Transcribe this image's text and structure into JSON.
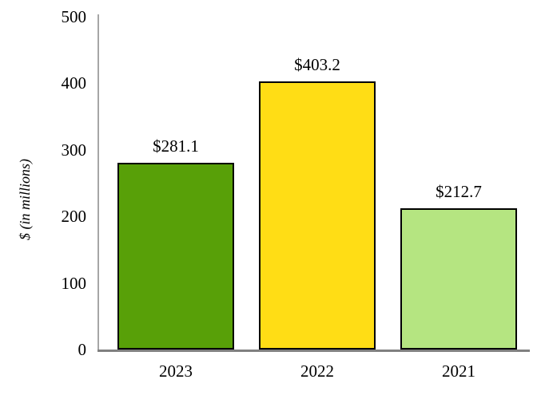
{
  "chart_data": {
    "type": "bar",
    "title": "",
    "categories": [
      "2023",
      "2022",
      "2021"
    ],
    "values": [
      281.1,
      403.2,
      212.7
    ],
    "value_labels": [
      "$281.1",
      "$403.2",
      "$212.7"
    ],
    "series_colors": [
      "#58A008",
      "#FFDD15",
      "#B5E581"
    ],
    "bar_border_color": "#000000",
    "xlabel": "",
    "ylabel": "$ (in millions)",
    "yticks": [
      "0",
      "100",
      "200",
      "300",
      "400",
      "500"
    ],
    "ytick_values": [
      0,
      100,
      200,
      300,
      400,
      500
    ],
    "ylim": [
      0,
      500
    ],
    "grid": false,
    "legend": false,
    "background": "#FFFFFF",
    "y_axis_color": "#A6A6A6",
    "x_axis_color": "#808080",
    "text_color": "#000000"
  }
}
